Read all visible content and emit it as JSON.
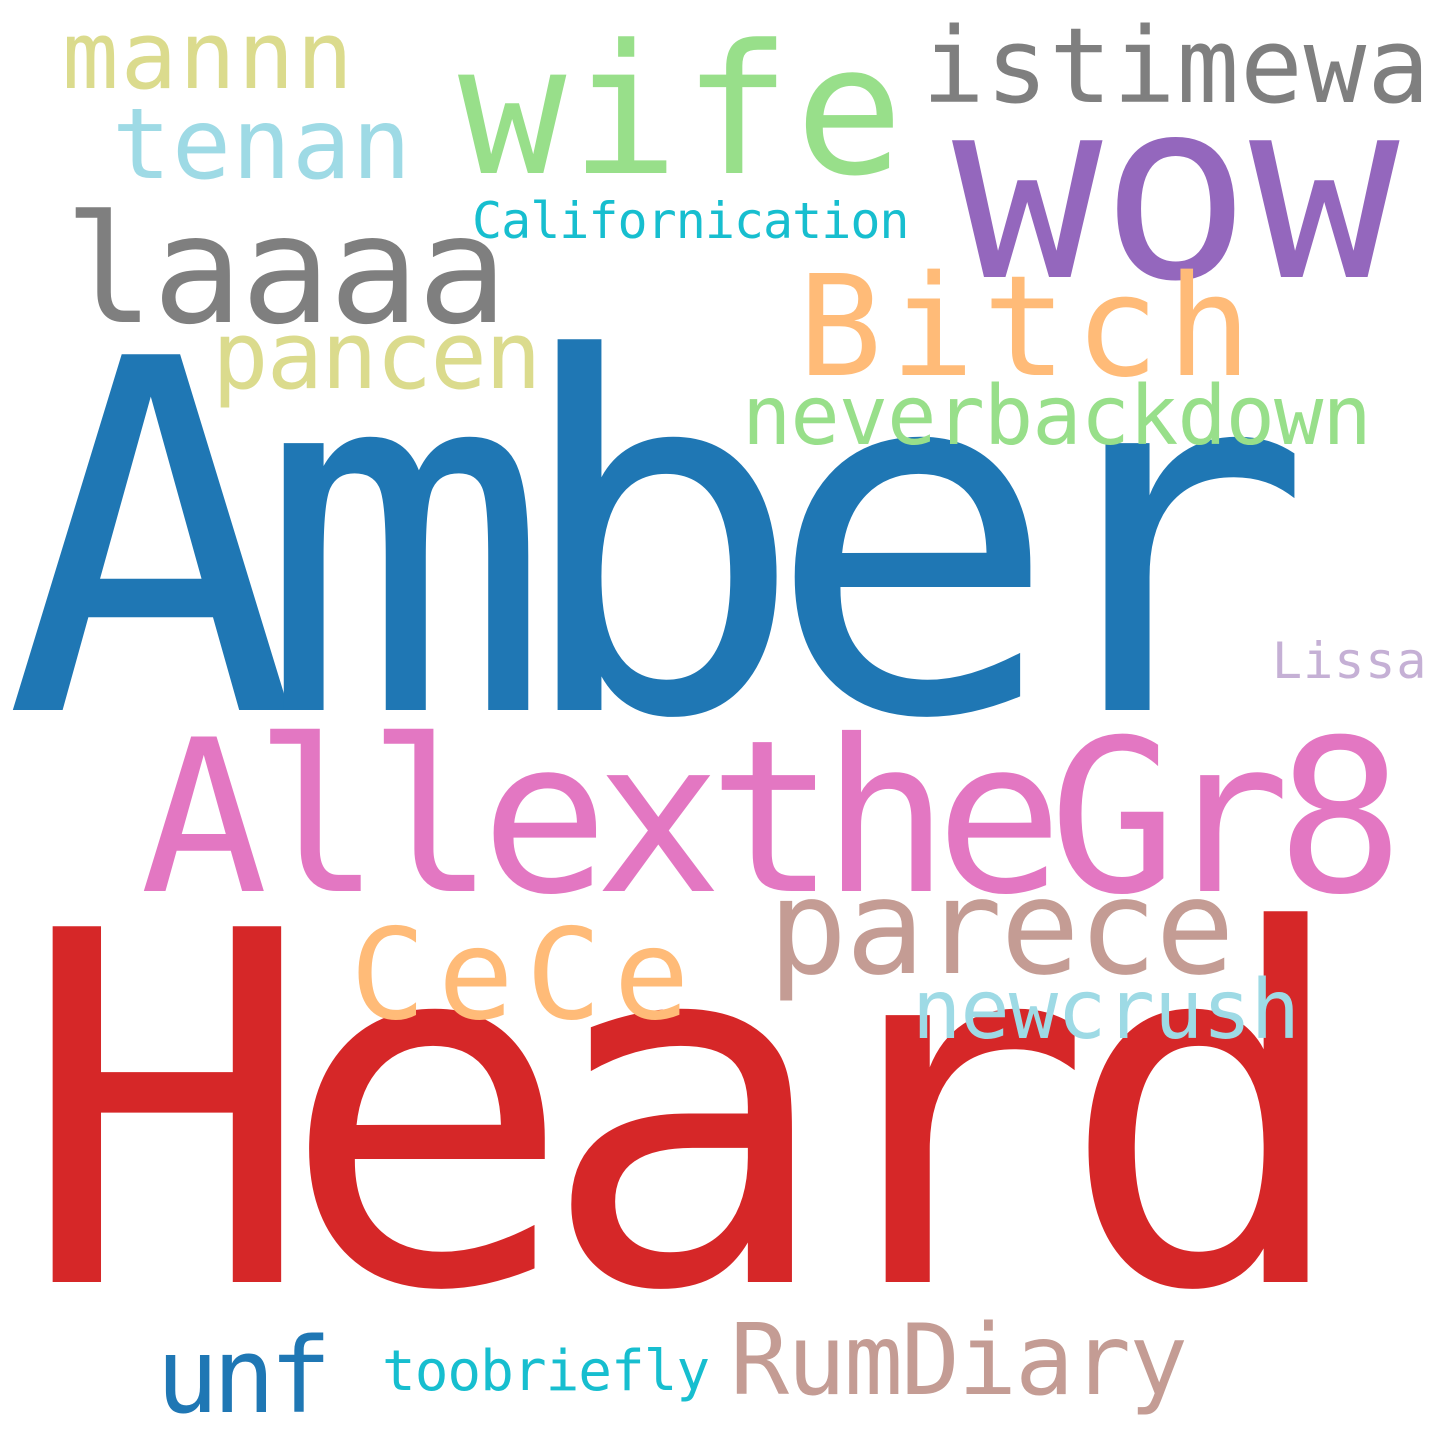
{
  "words": [
    {
      "text": "Amber",
      "color": "#1f77b4"
    },
    {
      "text": "Heard",
      "color": "#d62728"
    },
    {
      "text": "wow",
      "color": "#9467bd"
    },
    {
      "text": "wife",
      "color": "#98df8a"
    },
    {
      "text": "AllextheGr8",
      "color": "#e377c2"
    },
    {
      "text": "Bitch",
      "color": "#ffbb78"
    },
    {
      "text": "laaaa",
      "color": "#7f7f7f"
    },
    {
      "text": "istimewa",
      "color": "#7f7f7f"
    },
    {
      "text": "parece",
      "color": "#c49c94"
    },
    {
      "text": "CeCe",
      "color": "#ffbb78"
    },
    {
      "text": "RumDiary",
      "color": "#c49c94"
    },
    {
      "text": "tenan",
      "color": "#9edae5"
    },
    {
      "text": "mannn",
      "color": "#dbdb8d"
    },
    {
      "text": "pancen",
      "color": "#dbdb8d"
    },
    {
      "text": "neverbackdown",
      "color": "#98df8a"
    },
    {
      "text": "newcrush",
      "color": "#9edae5"
    },
    {
      "text": "unf",
      "color": "#1f77b4"
    },
    {
      "text": "Californication",
      "color": "#17becf"
    },
    {
      "text": "toobriefly",
      "color": "#17becf"
    },
    {
      "text": "Lissa",
      "color": "#c5b0d5"
    }
  ]
}
